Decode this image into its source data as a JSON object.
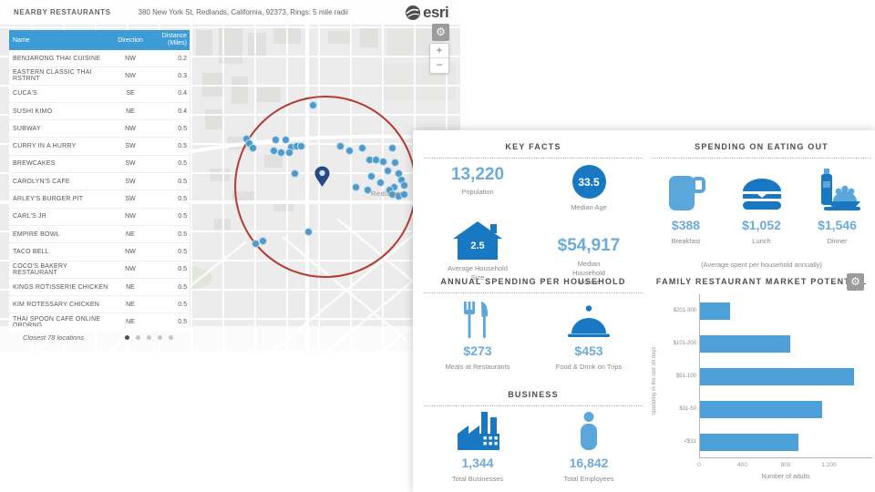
{
  "header": {
    "title": "NEARBY RESTAURANTS",
    "subtitle": "380 New York St, Redlands, California, 92373,  Rings: 5 mile radii"
  },
  "logo": {
    "text": "esri"
  },
  "controls": {
    "zoom_in": "+",
    "zoom_out": "−",
    "gear": "⚙"
  },
  "map": {
    "place_label": "Redlands",
    "dots": [
      [
        343,
        115
      ],
      [
        270,
        152
      ],
      [
        273,
        157
      ],
      [
        277,
        162
      ],
      [
        302,
        153
      ],
      [
        313,
        153
      ],
      [
        319,
        161
      ],
      [
        317,
        167
      ],
      [
        325,
        160
      ],
      [
        330,
        160
      ],
      [
        308,
        167
      ],
      [
        300,
        165
      ],
      [
        373,
        160
      ],
      [
        383,
        165
      ],
      [
        397,
        162
      ],
      [
        405,
        175
      ],
      [
        412,
        175
      ],
      [
        420,
        177
      ],
      [
        430,
        162
      ],
      [
        433,
        178
      ],
      [
        425,
        187
      ],
      [
        437,
        190
      ],
      [
        440,
        197
      ],
      [
        443,
        203
      ],
      [
        432,
        205
      ],
      [
        427,
        208
      ],
      [
        430,
        213
      ],
      [
        437,
        215
      ],
      [
        443,
        213
      ],
      [
        417,
        200
      ],
      [
        407,
        193
      ],
      [
        390,
        205
      ],
      [
        403,
        208
      ],
      [
        323,
        190
      ],
      [
        338,
        254
      ],
      [
        280,
        267
      ],
      [
        288,
        264
      ]
    ]
  },
  "table": {
    "columns": [
      "Name",
      "Direction",
      "Distance (Miles)"
    ],
    "rows": [
      {
        "name": "BENJARONG THAI CUISINE",
        "direction": "NW",
        "distance": "0.2"
      },
      {
        "name": "EASTERN CLASSIC THAI RSTRNT",
        "direction": "NW",
        "distance": "0.3"
      },
      {
        "name": "CUCA'S",
        "direction": "SE",
        "distance": "0.4"
      },
      {
        "name": "SUSHI KIMO",
        "direction": "NE",
        "distance": "0.4"
      },
      {
        "name": "SUBWAY",
        "direction": "NW",
        "distance": "0.5"
      },
      {
        "name": "CURRY IN A HURRY",
        "direction": "SW",
        "distance": "0.5"
      },
      {
        "name": "BREWCAKES",
        "direction": "SW",
        "distance": "0.5"
      },
      {
        "name": "CAROLYN'S CAFE",
        "direction": "SW",
        "distance": "0.5"
      },
      {
        "name": "ARLEY'S BURGER PIT",
        "direction": "SW",
        "distance": "0.5"
      },
      {
        "name": "CARL'S JR",
        "direction": "NW",
        "distance": "0.5"
      },
      {
        "name": "EMPIRE BOWL",
        "direction": "NE",
        "distance": "0.5"
      },
      {
        "name": "TACO BELL",
        "direction": "NW",
        "distance": "0.5"
      },
      {
        "name": "COCO'S BAKERY RESTAURANT",
        "direction": "NW",
        "distance": "0.5"
      },
      {
        "name": "KINGS ROTISSERIE CHICKEN",
        "direction": "NE",
        "distance": "0.5"
      },
      {
        "name": "KIM ROTESSARY CHICKEN",
        "direction": "NE",
        "distance": "0.5"
      },
      {
        "name": "THAI SPOON CAFE ONLINE ORDRNG",
        "direction": "NE",
        "distance": "0.5"
      }
    ],
    "footer": "Closest 78 locations",
    "page_dot_count": 5
  },
  "infographic": {
    "key_facts": {
      "title": "KEY FACTS",
      "population": {
        "value": "13,220",
        "label": "Population"
      },
      "median_age": {
        "value": "33.5",
        "label": "Median Age"
      },
      "avg_household_size": {
        "value": "2.5",
        "label": "Average Household Size"
      },
      "median_income": {
        "value": "$54,917",
        "label": "Median Household Income"
      }
    },
    "eating_out": {
      "title": "SPENDING ON EATING OUT",
      "items": [
        {
          "icon": "coffee-cup",
          "value": "$388",
          "label": "Breakfast"
        },
        {
          "icon": "burger",
          "value": "$1,052",
          "label": "Lunch"
        },
        {
          "icon": "dinner",
          "value": "$1,546",
          "label": "Dinner"
        }
      ],
      "note": "(Average spent per household annually)"
    },
    "annual_spending": {
      "title": "ANNUAL SPENDING PER HOUSEHOLD",
      "items": [
        {
          "icon": "fork-knife",
          "value": "$273",
          "label": "Meals at Restaurants"
        },
        {
          "icon": "cloche",
          "value": "$453",
          "label": "Food & Drink on Trips"
        }
      ]
    },
    "business": {
      "title": "BUSINESS",
      "items": [
        {
          "icon": "factory",
          "value": "1,344",
          "label": "Total Businesses"
        },
        {
          "icon": "person",
          "value": "16,842",
          "label": "Total Employees"
        }
      ]
    }
  },
  "chart_data": {
    "type": "bar",
    "orientation": "horizontal",
    "title": "FAMILY RESTAURANT MARKET POTENTIAL",
    "categories": [
      "$201-300",
      "$101-200",
      "$51-100",
      "$31-50",
      "<$31"
    ],
    "values": [
      280,
      830,
      1420,
      1125,
      910
    ],
    "xlabel": "Number of adults",
    "ylabel": "Spending in the last 30 days",
    "xticks": [
      0,
      400,
      800,
      1200
    ],
    "xtick_labels": [
      "0",
      "400",
      "800",
      "1,200"
    ],
    "xlim": [
      0,
      1600
    ],
    "grid": false,
    "bar_color": "#4da0d8"
  },
  "colors": {
    "table_header_blue": "#3d9bd5",
    "value_blue": "#6dabd8",
    "dark_blue": "#1878c2",
    "light_blue": "#5ba7dc",
    "bar_blue": "#4da0d8",
    "ring_red": "#b23b32"
  }
}
